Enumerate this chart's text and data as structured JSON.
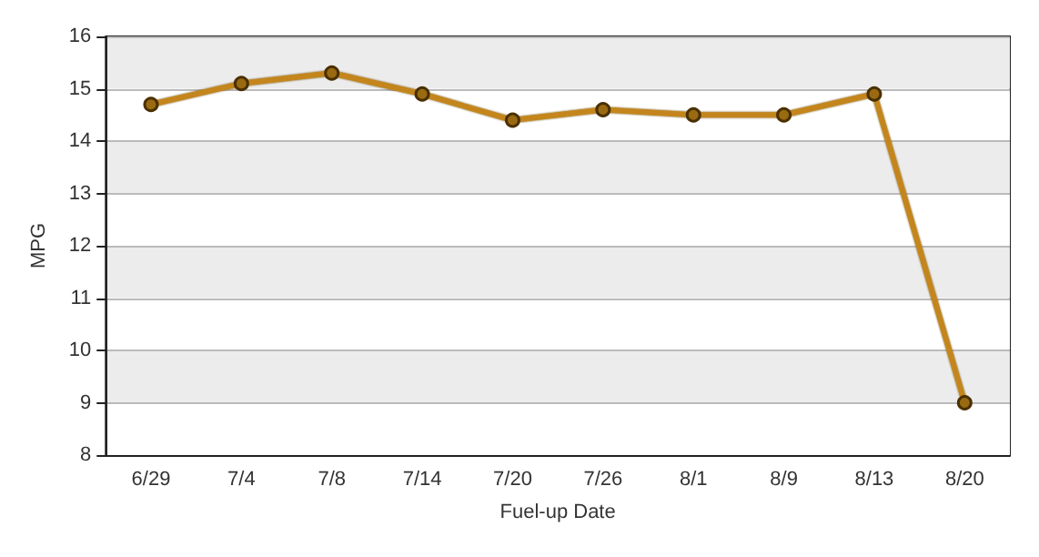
{
  "chart_data": {
    "type": "line",
    "xlabel": "Fuel-up Date",
    "ylabel": "MPG",
    "categories": [
      "6/29",
      "7/4",
      "7/8",
      "7/14",
      "7/20",
      "7/26",
      "8/1",
      "8/9",
      "8/13",
      "8/20"
    ],
    "values": [
      14.7,
      15.1,
      15.3,
      14.9,
      14.4,
      14.6,
      14.5,
      14.5,
      14.9,
      9.0
    ],
    "color": "#c4861a",
    "ylim": [
      8,
      16
    ],
    "yticks": [
      8,
      9,
      10,
      11,
      12,
      13,
      14,
      15,
      16
    ],
    "grid": "y",
    "marker": "circle"
  }
}
